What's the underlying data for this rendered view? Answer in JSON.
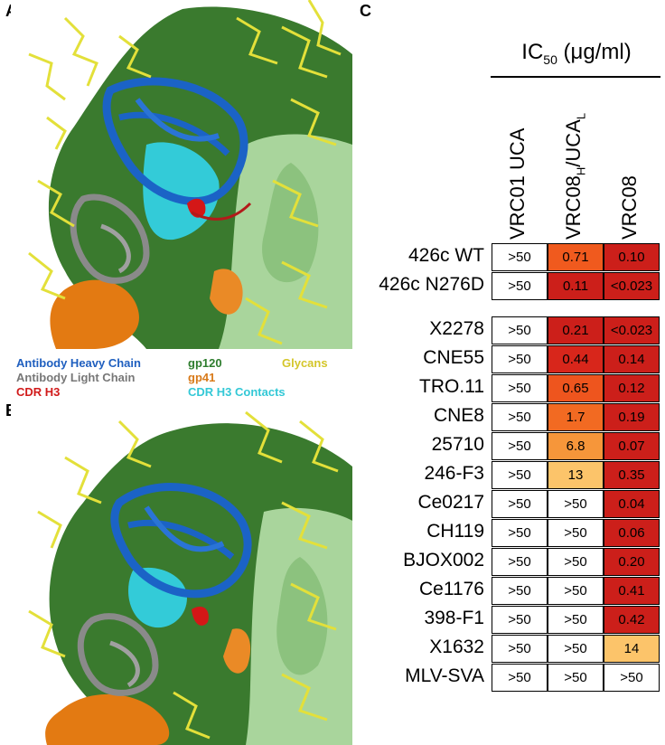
{
  "panels": {
    "a": "A",
    "b": "B",
    "c": "C"
  },
  "legend": [
    {
      "text": "Antibody Heavy Chain",
      "color": "#1f5fbf"
    },
    {
      "text": "gp120",
      "color": "#2e7d2e"
    },
    {
      "text": "Glycans",
      "color": "#d4c62a"
    },
    {
      "text": "Antibody Light Chain",
      "color": "#777777"
    },
    {
      "text": "gp41",
      "color": "#d87a1a"
    },
    {
      "text": "CDR H3",
      "color": "#d11a1a"
    },
    {
      "text": "CDR H3 Contacts",
      "color": "#33c8d6"
    }
  ],
  "table": {
    "title": "IC",
    "title_sub": "50",
    "title_unit": " (μg/ml)",
    "columns": [
      {
        "label": "VRC01 UCA",
        "sub": "",
        "suffix": ""
      },
      {
        "label": "VRC08",
        "sub": "H",
        "mid": "/UCA",
        "sub2": "L"
      },
      {
        "label": "VRC08",
        "sub": "",
        "suffix": ""
      }
    ],
    "rows": [
      {
        "name": "426c WT",
        "values": [
          ">50",
          "0.71",
          "0.10"
        ],
        "colors": [
          "#ffffff",
          "#f05a1e",
          "#cc1f1a"
        ]
      },
      {
        "name": "426c N276D",
        "values": [
          ">50",
          "0.11",
          "<0.023"
        ],
        "colors": [
          "#ffffff",
          "#cc1f1a",
          "#cc1f1a"
        ]
      },
      {
        "name": "X2278",
        "values": [
          ">50",
          "0.21",
          "<0.023"
        ],
        "colors": [
          "#ffffff",
          "#cc1f1a",
          "#cc1f1a"
        ]
      },
      {
        "name": "CNE55",
        "values": [
          ">50",
          "0.44",
          "0.14"
        ],
        "colors": [
          "#ffffff",
          "#d8261b",
          "#cc1f1a"
        ]
      },
      {
        "name": "TRO.11",
        "values": [
          ">50",
          "0.65",
          "0.12"
        ],
        "colors": [
          "#ffffff",
          "#ee551e",
          "#cc1f1a"
        ]
      },
      {
        "name": "CNE8",
        "values": [
          ">50",
          "1.7",
          "0.19"
        ],
        "colors": [
          "#ffffff",
          "#f26a22",
          "#cc1f1a"
        ]
      },
      {
        "name": "25710",
        "values": [
          ">50",
          "6.8",
          "0.07"
        ],
        "colors": [
          "#ffffff",
          "#f6963a",
          "#cc1f1a"
        ]
      },
      {
        "name": "246-F3",
        "values": [
          ">50",
          "13",
          "0.35"
        ],
        "colors": [
          "#ffffff",
          "#fcc46a",
          "#cc1f1a"
        ]
      },
      {
        "name": "Ce0217",
        "values": [
          ">50",
          ">50",
          "0.04"
        ],
        "colors": [
          "#ffffff",
          "#ffffff",
          "#cc1f1a"
        ]
      },
      {
        "name": "CH119",
        "values": [
          ">50",
          ">50",
          "0.06"
        ],
        "colors": [
          "#ffffff",
          "#ffffff",
          "#cc1f1a"
        ]
      },
      {
        "name": "BJOX002",
        "values": [
          ">50",
          ">50",
          "0.20"
        ],
        "colors": [
          "#ffffff",
          "#ffffff",
          "#cc1f1a"
        ]
      },
      {
        "name": "Ce1176",
        "values": [
          ">50",
          ">50",
          "0.41"
        ],
        "colors": [
          "#ffffff",
          "#ffffff",
          "#cc1f1a"
        ]
      },
      {
        "name": "398-F1",
        "values": [
          ">50",
          ">50",
          "0.42"
        ],
        "colors": [
          "#ffffff",
          "#ffffff",
          "#cc1f1a"
        ]
      },
      {
        "name": "X1632",
        "values": [
          ">50",
          ">50",
          "14"
        ],
        "colors": [
          "#ffffff",
          "#ffffff",
          "#fcc46a"
        ]
      },
      {
        "name": "MLV-SVA",
        "values": [
          ">50",
          ">50",
          ">50"
        ],
        "colors": [
          "#ffffff",
          "#ffffff",
          "#ffffff"
        ]
      }
    ]
  }
}
